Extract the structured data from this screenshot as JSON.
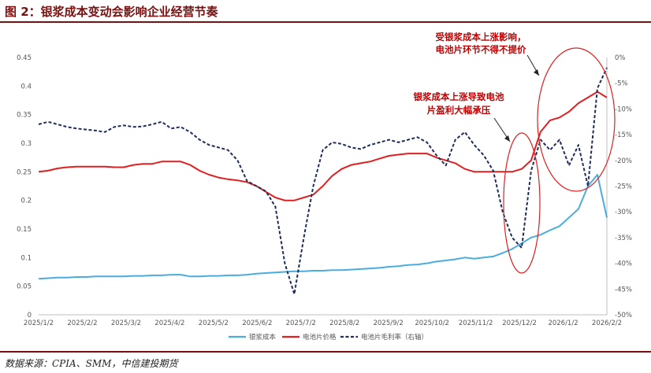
{
  "figure": {
    "title": "图 2：银浆成本变动会影响企业经营节奏",
    "source": "数据来源：CPIA、SMM，中信建投期货"
  },
  "chart_data": {
    "type": "line",
    "x": [
      "2025/1/2",
      "2025/1/9",
      "2025/1/16",
      "2025/1/23",
      "2025/1/30",
      "2025/2/6",
      "2025/2/13",
      "2025/2/20",
      "2025/2/27",
      "2025/3/6",
      "2025/3/13",
      "2025/3/20",
      "2025/3/27",
      "2025/4/3",
      "2025/4/10",
      "2025/4/17",
      "2025/4/24",
      "2025/5/1",
      "2025/5/8",
      "2025/5/15",
      "2025/5/22",
      "2025/5/29",
      "2025/6/5",
      "2025/6/12",
      "2025/6/19",
      "2025/6/26",
      "2025/7/3",
      "2025/7/10",
      "2025/7/17",
      "2025/7/24",
      "2025/7/31",
      "2025/8/7",
      "2025/8/14",
      "2025/8/21",
      "2025/8/28",
      "2025/9/4",
      "2025/9/11",
      "2025/9/18",
      "2025/9/25",
      "2025/10/2",
      "2025/10/9",
      "2025/10/16",
      "2025/10/23",
      "2025/10/30",
      "2025/11/6",
      "2025/11/13",
      "2025/11/20",
      "2025/11/27",
      "2025/12/4",
      "2025/12/11",
      "2025/12/18",
      "2025/12/25",
      "2026/1/1",
      "2026/1/8",
      "2026/1/15",
      "2026/1/22",
      "2026/1/29",
      "2026/2/5",
      "2026/2/12",
      "2026/2/19",
      "2026/2/26"
    ],
    "x_tick_labels": [
      "2025/1/2",
      "2025/2/2",
      "2025/3/2",
      "2025/4/2",
      "2025/5/2",
      "2025/6/2",
      "2025/7/2",
      "2025/8/2",
      "2025/9/2",
      "2025/10/2",
      "2025/11/2",
      "2025/12/2",
      "2026/1/2",
      "2026/2/2"
    ],
    "y_left": {
      "ylim": [
        0,
        0.45
      ],
      "ticks": [
        "0",
        "0.05",
        "0.1",
        "0.15",
        "0.2",
        "0.25",
        "0.3",
        "0.35",
        "0.4",
        "0.45"
      ]
    },
    "y_right": {
      "ylim": [
        -50,
        0
      ],
      "ticks": [
        "0%",
        "-5%",
        "-10%",
        "-15%",
        "-20%",
        "-25%",
        "-30%",
        "-35%",
        "-40%",
        "-45%",
        "-50%"
      ]
    },
    "grid": false,
    "legend_position": "bottom",
    "series": [
      {
        "name": "银浆成本",
        "axis": "left",
        "color": "#4bacde",
        "style": "solid",
        "values": [
          0.063,
          0.064,
          0.065,
          0.065,
          0.066,
          0.066,
          0.067,
          0.067,
          0.067,
          0.067,
          0.068,
          0.068,
          0.069,
          0.069,
          0.07,
          0.07,
          0.067,
          0.067,
          0.068,
          0.068,
          0.069,
          0.069,
          0.07,
          0.072,
          0.073,
          0.074,
          0.075,
          0.076,
          0.076,
          0.077,
          0.077,
          0.078,
          0.078,
          0.079,
          0.08,
          0.081,
          0.082,
          0.084,
          0.085,
          0.087,
          0.088,
          0.09,
          0.093,
          0.095,
          0.097,
          0.1,
          0.098,
          0.1,
          0.102,
          0.108,
          0.115,
          0.125,
          0.135,
          0.14,
          0.148,
          0.155,
          0.17,
          0.185,
          0.225,
          0.245,
          0.17
        ]
      },
      {
        "name": "电池片价格",
        "axis": "left",
        "color": "#e02020",
        "style": "solid",
        "values": [
          0.25,
          0.252,
          0.256,
          0.258,
          0.259,
          0.259,
          0.259,
          0.259,
          0.258,
          0.258,
          0.262,
          0.264,
          0.264,
          0.268,
          0.268,
          0.268,
          0.262,
          0.252,
          0.245,
          0.24,
          0.237,
          0.235,
          0.232,
          0.225,
          0.215,
          0.205,
          0.2,
          0.2,
          0.205,
          0.21,
          0.225,
          0.243,
          0.255,
          0.262,
          0.265,
          0.268,
          0.273,
          0.278,
          0.28,
          0.282,
          0.282,
          0.282,
          0.275,
          0.27,
          0.265,
          0.255,
          0.25,
          0.25,
          0.25,
          0.25,
          0.25,
          0.255,
          0.27,
          0.32,
          0.34,
          0.345,
          0.355,
          0.37,
          0.38,
          0.39,
          0.38
        ]
      },
      {
        "name": "电池片毛利率（右轴）",
        "axis": "right",
        "color": "#1f2d5a",
        "style": "dashed",
        "values": [
          -13,
          -12.5,
          -13,
          -13.5,
          -13.8,
          -14,
          -14.2,
          -14.5,
          -13.5,
          -13.2,
          -13.5,
          -13.4,
          -13,
          -12.5,
          -13.8,
          -13.5,
          -14.5,
          -16,
          -17,
          -17.5,
          -18,
          -20,
          -24,
          -25,
          -26,
          -29,
          -40,
          -46,
          -35,
          -25,
          -18,
          -16.5,
          -16.8,
          -17.5,
          -17.8,
          -17,
          -16.5,
          -16,
          -16.5,
          -16,
          -15.5,
          -16.5,
          -19,
          -21,
          -16,
          -14.5,
          -17,
          -19,
          -22,
          -30,
          -35,
          -37,
          -22,
          -16,
          -18,
          -16,
          -21,
          -17,
          -25,
          -6,
          -2
        ]
      }
    ],
    "annotations": [
      {
        "text": [
          "银浆成本上涨导致电池",
          "片盈利大幅承压"
        ]
      },
      {
        "text": [
          "受银浆成本上涨影响，",
          "电池片环节不得不提价"
        ]
      }
    ]
  }
}
